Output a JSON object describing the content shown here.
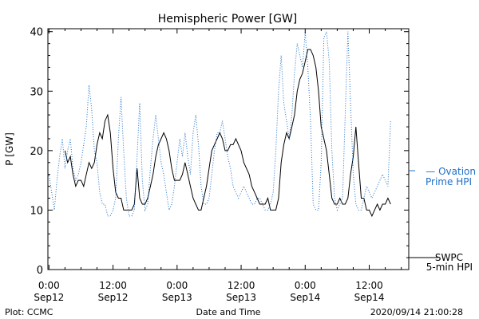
{
  "chart_data": {
    "type": "line",
    "title": "Hemispheric Power [GW]",
    "ylabel": "P [GW]",
    "xlabel": "Date and Time",
    "xlim": [
      -0.2,
      67.4
    ],
    "ylim": [
      0,
      40.5
    ],
    "yticks": [
      0,
      10,
      20,
      30,
      40
    ],
    "xticks": [
      {
        "x": 0,
        "line1": "0:00",
        "line2": "Sep12"
      },
      {
        "x": 12,
        "line1": "12:00",
        "line2": "Sep12"
      },
      {
        "x": 24,
        "line1": "0:00",
        "line2": "Sep13"
      },
      {
        "x": 36,
        "line1": "12:00",
        "line2": "Sep13"
      },
      {
        "x": 48,
        "line1": "0:00",
        "line2": "Sep14"
      },
      {
        "x": 60,
        "line1": "12:00",
        "line2": "Sep14"
      }
    ],
    "x_units": "hours since 2020-09-12 00:00 UT",
    "series": [
      {
        "name": "SWPC 5-min HPI",
        "color": "#000000",
        "style": "solid",
        "points": [
          [
            3,
            20
          ],
          [
            3.5,
            18
          ],
          [
            4,
            19
          ],
          [
            4.5,
            16
          ],
          [
            5,
            14
          ],
          [
            5.5,
            15
          ],
          [
            6,
            15
          ],
          [
            6.5,
            14
          ],
          [
            7,
            16
          ],
          [
            7.5,
            18
          ],
          [
            8,
            17
          ],
          [
            8.5,
            18
          ],
          [
            9,
            21
          ],
          [
            9.5,
            23
          ],
          [
            10,
            22
          ],
          [
            10.5,
            25
          ],
          [
            11,
            26
          ],
          [
            11.5,
            23
          ],
          [
            12,
            17
          ],
          [
            12.5,
            13
          ],
          [
            13,
            12
          ],
          [
            13.5,
            12
          ],
          [
            14,
            10
          ],
          [
            14.5,
            10
          ],
          [
            15,
            10
          ],
          [
            15.5,
            10
          ],
          [
            16,
            11
          ],
          [
            16.5,
            17
          ],
          [
            17,
            12
          ],
          [
            17.5,
            11
          ],
          [
            18,
            11
          ],
          [
            18.5,
            12
          ],
          [
            19,
            14
          ],
          [
            19.5,
            16
          ],
          [
            20,
            19
          ],
          [
            20.5,
            21
          ],
          [
            21,
            22
          ],
          [
            21.5,
            23
          ],
          [
            22,
            22
          ],
          [
            22.5,
            20
          ],
          [
            23,
            17
          ],
          [
            23.5,
            15
          ],
          [
            24,
            15
          ],
          [
            24.5,
            15
          ],
          [
            25,
            16
          ],
          [
            25.5,
            18
          ],
          [
            26,
            16
          ],
          [
            26.5,
            14
          ],
          [
            27,
            12
          ],
          [
            27.5,
            11
          ],
          [
            28,
            10
          ],
          [
            28.5,
            10
          ],
          [
            29,
            12
          ],
          [
            29.5,
            14
          ],
          [
            30,
            17
          ],
          [
            30.5,
            20
          ],
          [
            31,
            21
          ],
          [
            31.5,
            22
          ],
          [
            32,
            23
          ],
          [
            32.5,
            22
          ],
          [
            33,
            20
          ],
          [
            33.5,
            20
          ],
          [
            34,
            21
          ],
          [
            34.5,
            21
          ],
          [
            35,
            22
          ],
          [
            35.5,
            21
          ],
          [
            36,
            20
          ],
          [
            36.5,
            18
          ],
          [
            37,
            17
          ],
          [
            37.5,
            16
          ],
          [
            38,
            14
          ],
          [
            38.5,
            13
          ],
          [
            39,
            12
          ],
          [
            39.5,
            11
          ],
          [
            40,
            11
          ],
          [
            40.5,
            11
          ],
          [
            41,
            12
          ],
          [
            41.5,
            10
          ],
          [
            42,
            10
          ],
          [
            42.5,
            10
          ],
          [
            43,
            12
          ],
          [
            43.5,
            18
          ],
          [
            44,
            21
          ],
          [
            44.5,
            23
          ],
          [
            45,
            22
          ],
          [
            45.5,
            24
          ],
          [
            46,
            26
          ],
          [
            46.5,
            30
          ],
          [
            47,
            32
          ],
          [
            47.5,
            33
          ],
          [
            48,
            35
          ],
          [
            48.5,
            37
          ],
          [
            49,
            37
          ],
          [
            49.5,
            36
          ],
          [
            50,
            34
          ],
          [
            50.5,
            30
          ],
          [
            51,
            24
          ],
          [
            51.5,
            22
          ],
          [
            52,
            20
          ],
          [
            52.5,
            16
          ],
          [
            53,
            12
          ],
          [
            53.5,
            11
          ],
          [
            54,
            11
          ],
          [
            54.5,
            12
          ],
          [
            55,
            11
          ],
          [
            55.5,
            11
          ],
          [
            56,
            12
          ],
          [
            56.5,
            16
          ],
          [
            57,
            19
          ],
          [
            57.5,
            24
          ],
          [
            58,
            18
          ],
          [
            58.5,
            12
          ],
          [
            59,
            12
          ],
          [
            59.5,
            10
          ],
          [
            60,
            10
          ],
          [
            60.5,
            9
          ],
          [
            61,
            10
          ],
          [
            61.5,
            11
          ],
          [
            62,
            10
          ],
          [
            62.5,
            11
          ],
          [
            63,
            11
          ],
          [
            63.5,
            12
          ],
          [
            64,
            11
          ]
        ]
      },
      {
        "name": "Ovation Prime HPI",
        "color": "#1e6fc7",
        "style": "dotted",
        "points": [
          [
            -2,
            22
          ],
          [
            -1.5,
            18
          ],
          [
            -1,
            17
          ],
          [
            -0.5,
            15
          ],
          [
            0,
            16
          ],
          [
            0.5,
            13
          ],
          [
            1,
            10
          ],
          [
            1.5,
            15
          ],
          [
            2,
            19
          ],
          [
            2.5,
            22
          ],
          [
            3,
            17
          ],
          [
            3.5,
            20
          ],
          [
            4,
            22
          ],
          [
            4.5,
            17
          ],
          [
            5,
            15
          ],
          [
            5.5,
            16
          ],
          [
            6,
            18
          ],
          [
            6.5,
            21
          ],
          [
            7,
            24
          ],
          [
            7.5,
            31
          ],
          [
            8,
            27
          ],
          [
            8.5,
            20
          ],
          [
            9,
            18
          ],
          [
            9.5,
            13
          ],
          [
            10,
            11
          ],
          [
            10.5,
            11
          ],
          [
            11,
            9
          ],
          [
            11.5,
            9
          ],
          [
            12,
            10
          ],
          [
            12.5,
            12
          ],
          [
            13,
            22
          ],
          [
            13.5,
            29
          ],
          [
            14,
            20
          ],
          [
            14.5,
            12
          ],
          [
            15,
            9
          ],
          [
            15.5,
            9
          ],
          [
            16,
            10
          ],
          [
            16.5,
            19
          ],
          [
            17,
            28
          ],
          [
            17.5,
            15
          ],
          [
            18,
            10
          ],
          [
            18.5,
            11
          ],
          [
            19,
            17
          ],
          [
            19.5,
            22
          ],
          [
            20,
            26
          ],
          [
            20.5,
            22
          ],
          [
            21,
            18
          ],
          [
            21.5,
            16
          ],
          [
            22,
            13
          ],
          [
            22.5,
            10
          ],
          [
            23,
            11
          ],
          [
            23.5,
            14
          ],
          [
            24,
            18
          ],
          [
            24.5,
            22
          ],
          [
            25,
            19
          ],
          [
            25.5,
            23
          ],
          [
            26,
            19
          ],
          [
            26.5,
            16
          ],
          [
            27,
            23
          ],
          [
            27.5,
            26
          ],
          [
            28,
            21
          ],
          [
            28.5,
            14
          ],
          [
            29,
            11
          ],
          [
            29.5,
            11
          ],
          [
            30,
            12
          ],
          [
            30.5,
            16
          ],
          [
            31,
            20
          ],
          [
            31.5,
            23
          ],
          [
            32,
            23
          ],
          [
            32.5,
            25
          ],
          [
            33,
            22
          ],
          [
            33.5,
            19
          ],
          [
            34,
            17
          ],
          [
            34.5,
            14
          ],
          [
            35,
            13
          ],
          [
            35.5,
            12
          ],
          [
            36,
            13
          ],
          [
            36.5,
            14
          ],
          [
            37,
            13
          ],
          [
            37.5,
            12
          ],
          [
            38,
            11
          ],
          [
            38.5,
            11
          ],
          [
            39,
            12
          ],
          [
            39.5,
            12
          ],
          [
            40,
            11
          ],
          [
            40.5,
            10
          ],
          [
            41,
            10
          ],
          [
            41.5,
            11
          ],
          [
            42,
            13
          ],
          [
            42.5,
            20
          ],
          [
            43,
            30
          ],
          [
            43.5,
            36
          ],
          [
            44,
            28
          ],
          [
            44.5,
            25
          ],
          [
            45,
            22
          ],
          [
            45.5,
            26
          ],
          [
            46,
            33
          ],
          [
            46.5,
            38
          ],
          [
            47,
            36
          ],
          [
            47.5,
            34
          ],
          [
            48,
            40
          ],
          [
            48.5,
            34
          ],
          [
            49,
            25
          ],
          [
            49.5,
            11
          ],
          [
            50,
            10
          ],
          [
            50.5,
            10
          ],
          [
            51,
            18
          ],
          [
            51.5,
            39
          ],
          [
            52,
            40
          ],
          [
            52.5,
            35
          ],
          [
            53,
            20
          ],
          [
            53.5,
            12
          ],
          [
            54,
            10
          ],
          [
            54.5,
            11
          ],
          [
            55,
            12
          ],
          [
            55.5,
            26
          ],
          [
            56,
            40
          ],
          [
            56.5,
            28
          ],
          [
            57,
            16
          ],
          [
            57.5,
            11
          ],
          [
            58,
            10
          ],
          [
            58.5,
            10
          ],
          [
            59,
            12
          ],
          [
            59.5,
            14
          ],
          [
            60,
            13
          ],
          [
            60.5,
            12
          ],
          [
            61,
            13
          ],
          [
            61.5,
            14
          ],
          [
            62,
            15
          ],
          [
            62.5,
            16
          ],
          [
            63,
            15
          ],
          [
            63.5,
            14
          ],
          [
            64,
            25
          ]
        ]
      }
    ]
  },
  "legend": {
    "ovation_label_1": "— Ovation",
    "ovation_label_2": "Prime HPI",
    "ovation_value": 17,
    "swpc_label_1": "SWPC",
    "swpc_label_2": "5-min HPI",
    "swpc_value": 2
  },
  "footer": {
    "plot_credit": "Plot: CCMC",
    "timestamp": "2020/09/14 21:00:28"
  },
  "colors": {
    "axis": "#000000",
    "ovation": "#1e6fc7",
    "swpc": "#000000"
  }
}
